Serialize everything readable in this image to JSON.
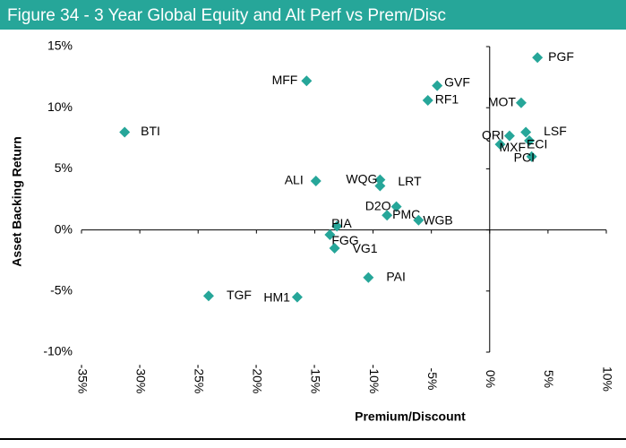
{
  "chart_data": {
    "type": "scatter",
    "title": "Figure 34 - 3 Year Global Equity and Alt Perf vs Prem/Disc",
    "xlabel": "Premium/Discount",
    "ylabel": "Asset Backing Return",
    "color": "#26a699",
    "series": [
      {
        "names": [
          "PGF",
          "MFF",
          "GVF",
          "RF1",
          "MOT",
          "BTI",
          "LSF",
          "QRI",
          "MXF",
          "ECI",
          "PCI",
          "ALI",
          "WQG",
          "LRT",
          "D2O",
          "PMC",
          "WGB",
          "PIA",
          "FGG",
          "VG1",
          "PAI",
          "TGF",
          "HM1"
        ],
        "x": [
          4.1,
          -15.7,
          -4.5,
          -5.3,
          2.7,
          -31.3,
          3.1,
          1.7,
          0.9,
          3.4,
          3.6,
          -14.9,
          -9.4,
          -9.4,
          -8.0,
          -8.8,
          -6.1,
          -13.1,
          -13.7,
          -13.3,
          -10.4,
          -24.1,
          -16.5
        ],
        "values": [
          14.1,
          12.2,
          11.8,
          10.6,
          10.4,
          8.0,
          8.0,
          7.7,
          7.0,
          7.3,
          6.0,
          4.0,
          4.1,
          3.6,
          1.9,
          1.2,
          0.8,
          0.3,
          -0.4,
          -1.5,
          -3.9,
          -5.4,
          -5.5
        ]
      }
    ],
    "xlim": [
      -35,
      10
    ],
    "xticks": [
      {
        "value": -35,
        "label": "-35%"
      },
      {
        "value": -30,
        "label": "-30%"
      },
      {
        "value": -25,
        "label": "-25%"
      },
      {
        "value": -20,
        "label": "-20%"
      },
      {
        "value": -15,
        "label": "-15%"
      },
      {
        "value": -10,
        "label": "-10%"
      },
      {
        "value": -5,
        "label": "-5%"
      },
      {
        "value": 0,
        "label": "0%"
      },
      {
        "value": 5,
        "label": "5%"
      },
      {
        "value": 10,
        "label": "10%"
      }
    ],
    "ylim": [
      -10,
      15
    ],
    "yticks": [
      {
        "value": -10,
        "label": "-10%"
      },
      {
        "value": -5,
        "label": "-5%"
      },
      {
        "value": 0,
        "label": "0%"
      },
      {
        "value": 5,
        "label": "5%"
      },
      {
        "value": 10,
        "label": "10%"
      },
      {
        "value": 15,
        "label": "15%"
      }
    ]
  }
}
